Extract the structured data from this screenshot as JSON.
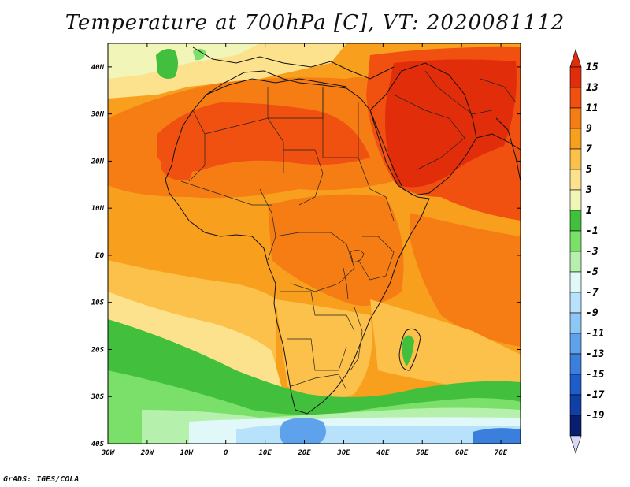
{
  "title": "Temperature at 700hPa [C], VT: 2020081112",
  "credit": "GrADS: IGES/COLA",
  "map": {
    "variable": "Temperature at 700hPa",
    "units": "C",
    "valid_time": "2020081112",
    "lon_range": [
      -30,
      75
    ],
    "lat_range": [
      -40,
      45
    ],
    "lat_ticks": [
      {
        "value": 40,
        "label": "40N"
      },
      {
        "value": 30,
        "label": "30N"
      },
      {
        "value": 20,
        "label": "20N"
      },
      {
        "value": 10,
        "label": "10N"
      },
      {
        "value": 0,
        "label": "EQ"
      },
      {
        "value": -10,
        "label": "10S"
      },
      {
        "value": -20,
        "label": "20S"
      },
      {
        "value": -30,
        "label": "30S"
      },
      {
        "value": -40,
        "label": "40S"
      }
    ],
    "lon_ticks": [
      {
        "value": -30,
        "label": "30W"
      },
      {
        "value": -20,
        "label": "20W"
      },
      {
        "value": -10,
        "label": "10W"
      },
      {
        "value": 0,
        "label": "0"
      },
      {
        "value": 10,
        "label": "10E"
      },
      {
        "value": 20,
        "label": "20E"
      },
      {
        "value": 30,
        "label": "30E"
      },
      {
        "value": 40,
        "label": "40E"
      },
      {
        "value": 50,
        "label": "50E"
      },
      {
        "value": 60,
        "label": "60E"
      },
      {
        "value": 70,
        "label": "70E"
      }
    ],
    "colors": {
      "c15": "#e12d0a",
      "c13": "#f05010",
      "c11": "#f57d14",
      "c9": "#f8a01e",
      "c7": "#fbc14a",
      "c5": "#fde28e",
      "c3": "#f2f5b8",
      "c1": "#42bf3c",
      "cm1": "#7ae06a",
      "cm3": "#b5f0ac",
      "cm5": "#e0f8f8",
      "cm7": "#b8e2fb",
      "cm9": "#8ec6f5",
      "cm11": "#5fa2ec",
      "cm13": "#3b7fdd",
      "cm15": "#1d5cc9",
      "cm17": "#1040a6",
      "cm19": "#0a1e6f",
      "low_arrow": "#d8d8f6"
    }
  },
  "legend": {
    "labels": [
      "15",
      "13",
      "11",
      "9",
      "7",
      "5",
      "3",
      "1",
      "-1",
      "-3",
      "-5",
      "-7",
      "-9",
      "-11",
      "-13",
      "-15",
      "-17",
      "-19"
    ],
    "colors": [
      "#e12d0a",
      "#f05010",
      "#f57d14",
      "#f8a01e",
      "#fbc14a",
      "#fde28e",
      "#f2f5b8",
      "#42bf3c",
      "#7ae06a",
      "#b5f0ac",
      "#e0f8f8",
      "#b8e2fb",
      "#8ec6f5",
      "#5fa2ec",
      "#3b7fdd",
      "#1d5cc9",
      "#1040a6",
      "#0a1e6f"
    ]
  }
}
